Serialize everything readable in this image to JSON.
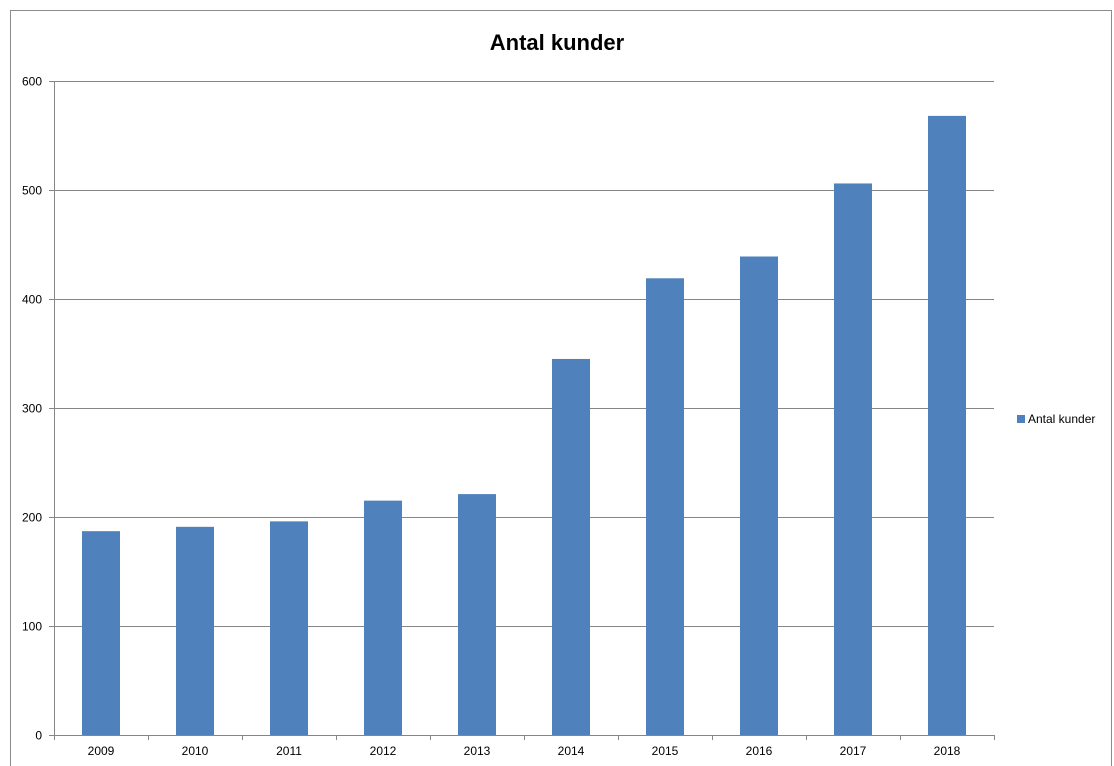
{
  "chart_data": {
    "type": "bar",
    "title": "Antal kunder",
    "xlabel": "",
    "ylabel": "",
    "categories": [
      "2009",
      "2010",
      "2011",
      "2012",
      "2013",
      "2014",
      "2015",
      "2016",
      "2017",
      "2018"
    ],
    "series": [
      {
        "name": "Antal kunder",
        "values": [
          187,
          191,
          196,
          215,
          221,
          345,
          419,
          439,
          506,
          568
        ],
        "color": "#4f81bd"
      }
    ],
    "ylim": [
      0,
      600
    ],
    "yticks": [
      0,
      100,
      200,
      300,
      400,
      500,
      600
    ],
    "grid": true,
    "legend_position": "right"
  }
}
